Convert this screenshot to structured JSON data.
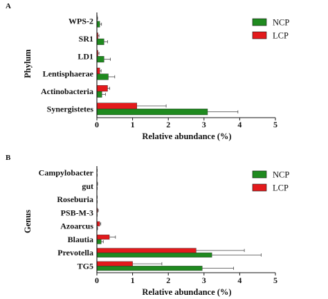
{
  "colors": {
    "NCP": "#1f8a1f",
    "LCP": "#e31a1c",
    "axis": "#111111",
    "error": "#444444"
  },
  "chart_data": [
    {
      "type": "bar",
      "orientation": "horizontal",
      "panel": "A",
      "ylabel": "Phylum",
      "xlabel": "Relative abundance (%)",
      "xlim": [
        0,
        5
      ],
      "xticks": [
        "0",
        "1",
        "2",
        "3",
        "4",
        "5"
      ],
      "legend_position": "top-right",
      "categories": [
        "WPS-2",
        "SR1",
        "LD1",
        "Lentisphaerae",
        "Actinobacteria",
        "Synergistetes"
      ],
      "series": [
        {
          "name": "NCP",
          "values": [
            0.08,
            0.2,
            0.2,
            0.32,
            0.14,
            3.1
          ],
          "errors": [
            0.05,
            0.1,
            0.18,
            0.18,
            0.1,
            0.85
          ]
        },
        {
          "name": "LCP",
          "values": [
            0.01,
            0.03,
            0.03,
            0.08,
            0.3,
            1.12
          ],
          "errors": [
            0.01,
            0.03,
            0.03,
            0.04,
            0.06,
            0.82
          ]
        }
      ]
    },
    {
      "type": "bar",
      "orientation": "horizontal",
      "panel": "B",
      "ylabel": "Genus",
      "xlabel": "Relative abundance (%)",
      "xlim": [
        0,
        5
      ],
      "xticks": [
        "0",
        "1",
        "2",
        "3",
        "4",
        "5"
      ],
      "legend_position": "top-right",
      "categories": [
        "Campylobacter",
        "gut",
        "Roseburia",
        "PSB-M-3",
        "Azoarcus",
        "Blautia",
        "Prevotella",
        "TG5"
      ],
      "series": [
        {
          "name": "NCP",
          "values": [
            0.005,
            0.005,
            0.005,
            0.005,
            0.01,
            0.12,
            3.22,
            2.95
          ],
          "errors": [
            0.005,
            0.005,
            0.005,
            0.005,
            0.01,
            0.06,
            1.38,
            0.88
          ]
        },
        {
          "name": "LCP",
          "values": [
            0.005,
            0.01,
            0.005,
            0.02,
            0.08,
            0.35,
            2.78,
            1.0
          ],
          "errors": [
            0.005,
            0.01,
            0.005,
            0.02,
            0.03,
            0.17,
            1.35,
            0.82
          ]
        }
      ]
    }
  ]
}
